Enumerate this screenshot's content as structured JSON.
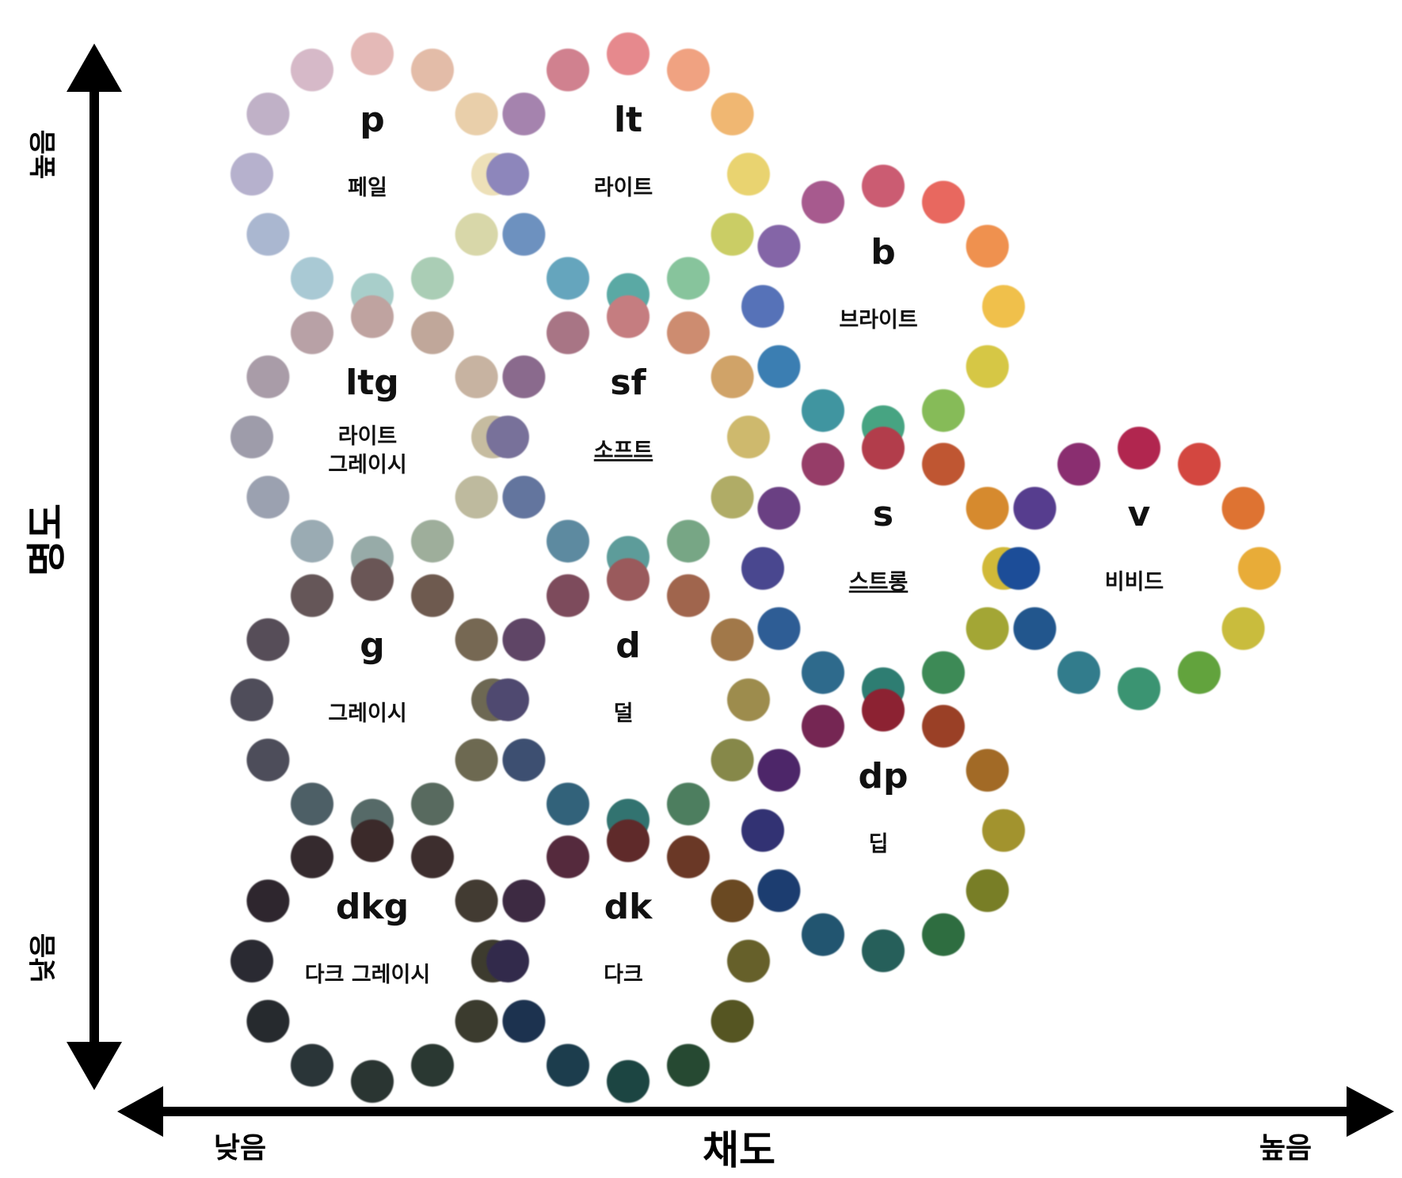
{
  "axes": {
    "vertical": {
      "title": "명도",
      "high": "높음",
      "low": "낮음"
    },
    "horizontal": {
      "title": "채도",
      "low": "낮음",
      "high": "높음"
    }
  },
  "tones": [
    {
      "id": "p",
      "abbr": "p",
      "name": [
        "페일"
      ],
      "name_underline": false,
      "colors": [
        "#E4B9B7",
        "#E3BCA8",
        "#E9CFAA",
        "#EDE0B8",
        "#D8D7A9",
        "#AACDB5",
        "#A8CECA",
        "#A9C9D4",
        "#AAB7D0",
        "#B6B1CD",
        "#C0B1C7",
        "#D6B9C8"
      ]
    },
    {
      "id": "lt",
      "abbr": "lt",
      "name": [
        "라이트"
      ],
      "name_underline": false,
      "colors": [
        "#E6898D",
        "#F0A281",
        "#F0B772",
        "#E9D36F",
        "#CACD65",
        "#87C49C",
        "#5AA9A4",
        "#65A5BD",
        "#6D91BF",
        "#8D86BB",
        "#A583AE",
        "#D0818F"
      ]
    },
    {
      "id": "ltg",
      "abbr": "ltg",
      "name": [
        "라이트",
        "그레이시"
      ],
      "name_underline": false,
      "colors": [
        "#BFA3A0",
        "#C0A79A",
        "#C7B3A1",
        "#C6BCA0",
        "#BEBA9E",
        "#9EAE9B",
        "#97ABA8",
        "#9AABB3",
        "#9BA1B0",
        "#9E9CAA",
        "#A99CA8",
        "#B8A1A6"
      ]
    },
    {
      "id": "sf",
      "abbr": "sf",
      "name": [
        "소프트"
      ],
      "name_underline": true,
      "colors": [
        "#C57D80",
        "#CD8C70",
        "#D0A368",
        "#CEB96D",
        "#B0AC66",
        "#77A685",
        "#5D9C9A",
        "#5D8AA0",
        "#64759E",
        "#78719A",
        "#8A6B8D",
        "#A87585"
      ]
    },
    {
      "id": "g",
      "abbr": "g",
      "name": [
        "그레이시"
      ],
      "name_underline": false,
      "colors": [
        "#6B5656",
        "#6E5A4F",
        "#766853",
        "#6D6752",
        "#6D6951",
        "#596B5E",
        "#566B68",
        "#4D5E66",
        "#4D4E5A",
        "#504D5A",
        "#574E59",
        "#655758"
      ]
    },
    {
      "id": "d",
      "abbr": "d",
      "name": [
        "덜"
      ],
      "name_underline": false,
      "colors": [
        "#9A5A5B",
        "#A0654E",
        "#A1784A",
        "#9D8C4E",
        "#86884A",
        "#4E7E5E",
        "#337370",
        "#32627A",
        "#3D5071",
        "#4F4A70",
        "#5E4566",
        "#7D4B5C"
      ]
    },
    {
      "id": "dkg",
      "abbr": "dkg",
      "name": [
        "다크 그레이시"
      ],
      "name_underline": false,
      "colors": [
        "#3A2C2C",
        "#3E2E2D",
        "#433A30",
        "#3E3B2F",
        "#3B3A2E",
        "#2C3730",
        "#2C3533",
        "#2B3439",
        "#28292F",
        "#2A2930",
        "#2D282E",
        "#352B2D"
      ]
    },
    {
      "id": "dk",
      "abbr": "dk",
      "name": [
        "다크"
      ],
      "name_underline": false,
      "colors": [
        "#5F2A2C",
        "#6A3726",
        "#6B4A24",
        "#66602A",
        "#545522",
        "#264A33",
        "#1D4542",
        "#1B3E4E",
        "#1B3150",
        "#312A4C",
        "#3E2943",
        "#55293D"
      ]
    },
    {
      "id": "b",
      "abbr": "b",
      "name": [
        "브라이트"
      ],
      "name_underline": false,
      "colors": [
        "#CB5C72",
        "#E8685F",
        "#EF9150",
        "#F0C04B",
        "#D6C744",
        "#86BB58",
        "#46A482",
        "#3F95A0",
        "#3A7EB2",
        "#5772B8",
        "#8465A7",
        "#A75A8E"
      ]
    },
    {
      "id": "s",
      "abbr": "s",
      "name": [
        "스트롱"
      ],
      "name_underline": true,
      "colors": [
        "#B23D4B",
        "#BF5732",
        "#D68A2E",
        "#D1B938",
        "#A3A635",
        "#3D8A57",
        "#2F7D72",
        "#2E6B8C",
        "#2D5D95",
        "#4A468F",
        "#6B3F83",
        "#963D67"
      ]
    },
    {
      "id": "v",
      "abbr": "v",
      "name": [
        "비비드"
      ],
      "name_underline": false,
      "colors": [
        "#B12550",
        "#D3463F",
        "#DE7332",
        "#E8AC38",
        "#C9BC3C",
        "#62A33C",
        "#3A9472",
        "#307C8C",
        "#24578D",
        "#1F4E98",
        "#573D8E",
        "#8A2E6F"
      ]
    },
    {
      "id": "dp",
      "abbr": "dp",
      "name": [
        "딥"
      ],
      "name_underline": false,
      "colors": [
        "#8C2232",
        "#9A4126",
        "#A26A25",
        "#A2932F",
        "#787E25",
        "#2E6D3F",
        "#255F5A",
        "#23556F",
        "#1D3E6F",
        "#333273",
        "#4E2869",
        "#752852"
      ]
    }
  ]
}
